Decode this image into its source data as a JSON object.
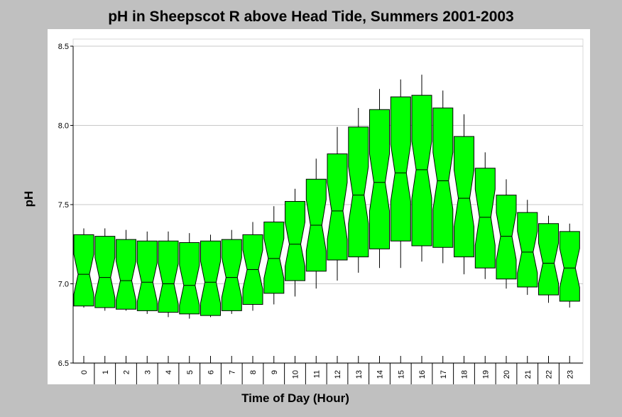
{
  "chart_data": {
    "type": "boxplot",
    "title": "pH in Sheepscot R above Head Tide, Summers 2001-2003",
    "xlabel": "Time of Day (Hour)",
    "ylabel": "pH",
    "ylim": [
      6.5,
      8.5
    ],
    "yticks": [
      "6.5",
      "7.0",
      "7.5",
      "8.0",
      "8.5"
    ],
    "grid": "horizontal",
    "box_color": "#00ff00",
    "categories": [
      "0",
      "1",
      "2",
      "3",
      "4",
      "5",
      "6",
      "7",
      "8",
      "9",
      "10",
      "11",
      "12",
      "13",
      "14",
      "15",
      "16",
      "17",
      "18",
      "19",
      "20",
      "21",
      "22",
      "23"
    ],
    "boxes": [
      {
        "whisker_low": 6.85,
        "q1": 6.86,
        "median": 7.06,
        "q3": 7.31,
        "whisker_high": 7.35
      },
      {
        "whisker_low": 6.83,
        "q1": 6.85,
        "median": 7.04,
        "q3": 7.3,
        "whisker_high": 7.35
      },
      {
        "whisker_low": 6.83,
        "q1": 6.84,
        "median": 7.02,
        "q3": 7.28,
        "whisker_high": 7.34
      },
      {
        "whisker_low": 6.81,
        "q1": 6.83,
        "median": 7.01,
        "q3": 7.27,
        "whisker_high": 7.33
      },
      {
        "whisker_low": 6.79,
        "q1": 6.82,
        "median": 7.0,
        "q3": 7.27,
        "whisker_high": 7.33
      },
      {
        "whisker_low": 6.78,
        "q1": 6.81,
        "median": 6.99,
        "q3": 7.26,
        "whisker_high": 7.32
      },
      {
        "whisker_low": 6.79,
        "q1": 6.8,
        "median": 7.01,
        "q3": 7.27,
        "whisker_high": 7.31
      },
      {
        "whisker_low": 6.81,
        "q1": 6.83,
        "median": 7.04,
        "q3": 7.28,
        "whisker_high": 7.34
      },
      {
        "whisker_low": 6.83,
        "q1": 6.87,
        "median": 7.09,
        "q3": 7.31,
        "whisker_high": 7.39
      },
      {
        "whisker_low": 6.87,
        "q1": 6.94,
        "median": 7.16,
        "q3": 7.39,
        "whisker_high": 7.49
      },
      {
        "whisker_low": 6.92,
        "q1": 7.02,
        "median": 7.25,
        "q3": 7.52,
        "whisker_high": 7.6
      },
      {
        "whisker_low": 6.97,
        "q1": 7.08,
        "median": 7.37,
        "q3": 7.66,
        "whisker_high": 7.79
      },
      {
        "whisker_low": 7.02,
        "q1": 7.15,
        "median": 7.46,
        "q3": 7.82,
        "whisker_high": 7.99
      },
      {
        "whisker_low": 7.07,
        "q1": 7.17,
        "median": 7.56,
        "q3": 7.99,
        "whisker_high": 8.11
      },
      {
        "whisker_low": 7.1,
        "q1": 7.22,
        "median": 7.64,
        "q3": 8.1,
        "whisker_high": 8.23
      },
      {
        "whisker_low": 7.1,
        "q1": 7.27,
        "median": 7.7,
        "q3": 8.18,
        "whisker_high": 8.29
      },
      {
        "whisker_low": 7.14,
        "q1": 7.24,
        "median": 7.72,
        "q3": 8.19,
        "whisker_high": 8.32
      },
      {
        "whisker_low": 7.13,
        "q1": 7.23,
        "median": 7.65,
        "q3": 8.11,
        "whisker_high": 8.22
      },
      {
        "whisker_low": 7.06,
        "q1": 7.17,
        "median": 7.54,
        "q3": 7.93,
        "whisker_high": 8.07
      },
      {
        "whisker_low": 7.03,
        "q1": 7.1,
        "median": 7.42,
        "q3": 7.73,
        "whisker_high": 7.83
      },
      {
        "whisker_low": 6.97,
        "q1": 7.03,
        "median": 7.3,
        "q3": 7.56,
        "whisker_high": 7.66
      },
      {
        "whisker_low": 6.93,
        "q1": 6.98,
        "median": 7.2,
        "q3": 7.45,
        "whisker_high": 7.53
      },
      {
        "whisker_low": 6.88,
        "q1": 6.93,
        "median": 7.13,
        "q3": 7.38,
        "whisker_high": 7.43
      },
      {
        "whisker_low": 6.85,
        "q1": 6.89,
        "median": 7.1,
        "q3": 7.33,
        "whisker_high": 7.38
      }
    ]
  }
}
